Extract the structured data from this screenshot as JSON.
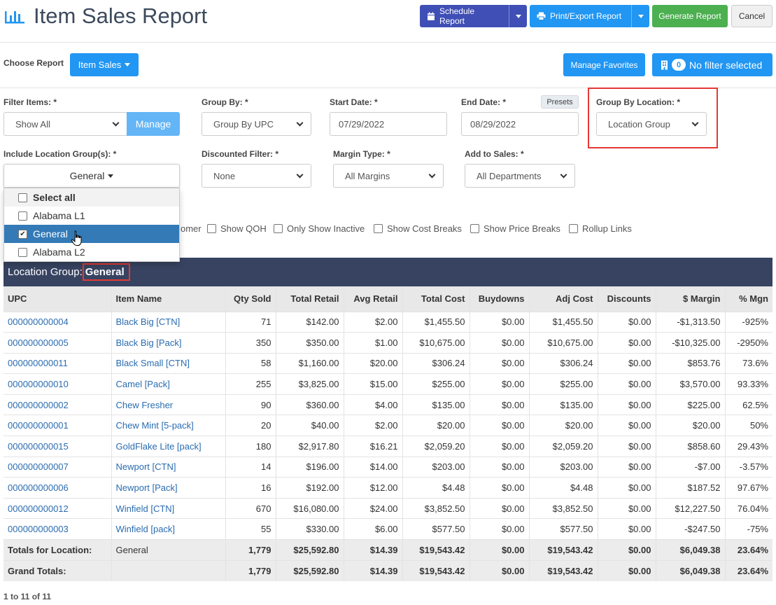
{
  "header": {
    "title": "Item Sales Report",
    "schedule": "Schedule Report",
    "print": "Print/Export Report",
    "generate": "Generate Report",
    "cancel": "Cancel"
  },
  "choose": {
    "label": "Choose Report",
    "report": "Item Sales",
    "favorites": "Manage Favorites",
    "filter_count": "0",
    "filter_text": "No filter selected"
  },
  "form": {
    "filter_items_label": "Filter Items: *",
    "filter_items_value": "Show All",
    "manage": "Manage",
    "group_by_label": "Group By: *",
    "group_by_value": "Group By UPC",
    "start_label": "Start Date: *",
    "start_value": "07/29/2022",
    "end_label": "End Date: *",
    "end_value": "08/29/2022",
    "presets": "Presets",
    "group_loc_label": "Group By Location: *",
    "group_loc_value": "Location Group",
    "include_label": "Include Location Group(s): *",
    "include_value": "General",
    "discounted_label": "Discounted Filter: *",
    "discounted_value": "None",
    "margin_label": "Margin Type: *",
    "margin_value": "All Margins",
    "add_label": "Add to Sales: *",
    "add_value": "All Departments"
  },
  "dropdown": {
    "select_all": "Select all",
    "items": [
      "Alabama L1",
      "General",
      "Alabama L2"
    ]
  },
  "checkboxes": {
    "partial": "omer",
    "qoh": "Show QOH",
    "inactive": "Only Show Inactive",
    "cost": "Show Cost Breaks",
    "price": "Show Price Breaks",
    "rollup": "Rollup Links"
  },
  "location": {
    "label": "Location Group:",
    "value": "General"
  },
  "table": {
    "headers": [
      "UPC",
      "Item Name",
      "Qty Sold",
      "Total Retail",
      "Avg Retail",
      "Total Cost",
      "Buydowns",
      "Adj Cost",
      "Discounts",
      "$ Margin",
      "% Mgn"
    ],
    "rows": [
      [
        "000000000004",
        "Black Big [CTN]",
        "71",
        "$142.00",
        "$2.00",
        "$1,455.50",
        "$0.00",
        "$1,455.50",
        "$0.00",
        "-$1,313.50",
        "-925%"
      ],
      [
        "000000000005",
        "Black Big [Pack]",
        "350",
        "$350.00",
        "$1.00",
        "$10,675.00",
        "$0.00",
        "$10,675.00",
        "$0.00",
        "-$10,325.00",
        "-2950%"
      ],
      [
        "000000000011",
        "Black Small [CTN]",
        "58",
        "$1,160.00",
        "$20.00",
        "$306.24",
        "$0.00",
        "$306.24",
        "$0.00",
        "$853.76",
        "73.6%"
      ],
      [
        "000000000010",
        "Camel [Pack]",
        "255",
        "$3,825.00",
        "$15.00",
        "$255.00",
        "$0.00",
        "$255.00",
        "$0.00",
        "$3,570.00",
        "93.33%"
      ],
      [
        "000000000002",
        "Chew Fresher",
        "90",
        "$360.00",
        "$4.00",
        "$135.00",
        "$0.00",
        "$135.00",
        "$0.00",
        "$225.00",
        "62.5%"
      ],
      [
        "000000000001",
        "Chew Mint [5-pack]",
        "20",
        "$40.00",
        "$2.00",
        "$20.00",
        "$0.00",
        "$20.00",
        "$0.00",
        "$20.00",
        "50%"
      ],
      [
        "000000000015",
        "GoldFlake Lite [pack]",
        "180",
        "$2,917.80",
        "$16.21",
        "$2,059.20",
        "$0.00",
        "$2,059.20",
        "$0.00",
        "$858.60",
        "29.43%"
      ],
      [
        "000000000007",
        "Newport [CTN]",
        "14",
        "$196.00",
        "$14.00",
        "$203.00",
        "$0.00",
        "$203.00",
        "$0.00",
        "-$7.00",
        "-3.57%"
      ],
      [
        "000000000006",
        "Newport [Pack]",
        "16",
        "$192.00",
        "$12.00",
        "$4.48",
        "$0.00",
        "$4.48",
        "$0.00",
        "$187.52",
        "97.67%"
      ],
      [
        "000000000012",
        "Winfield [CTN]",
        "670",
        "$16,080.00",
        "$24.00",
        "$3,852.50",
        "$0.00",
        "$3,852.50",
        "$0.00",
        "$12,227.50",
        "76.04%"
      ],
      [
        "000000000003",
        "Winfield [pack]",
        "55",
        "$330.00",
        "$6.00",
        "$577.50",
        "$0.00",
        "$577.50",
        "$0.00",
        "-$247.50",
        "-75%"
      ]
    ],
    "totals": [
      "Totals for Location:",
      "General",
      "1,779",
      "$25,592.80",
      "$14.39",
      "$19,543.42",
      "$0.00",
      "$19,543.42",
      "$0.00",
      "$6,049.38",
      "23.64%"
    ],
    "grand": [
      "Grand Totals:",
      "",
      "1,779",
      "$25,592.80",
      "$14.39",
      "$19,543.42",
      "$0.00",
      "$19,543.42",
      "$0.00",
      "$6,049.38",
      "23.64%"
    ]
  },
  "footer": "1 to 11 of 11"
}
